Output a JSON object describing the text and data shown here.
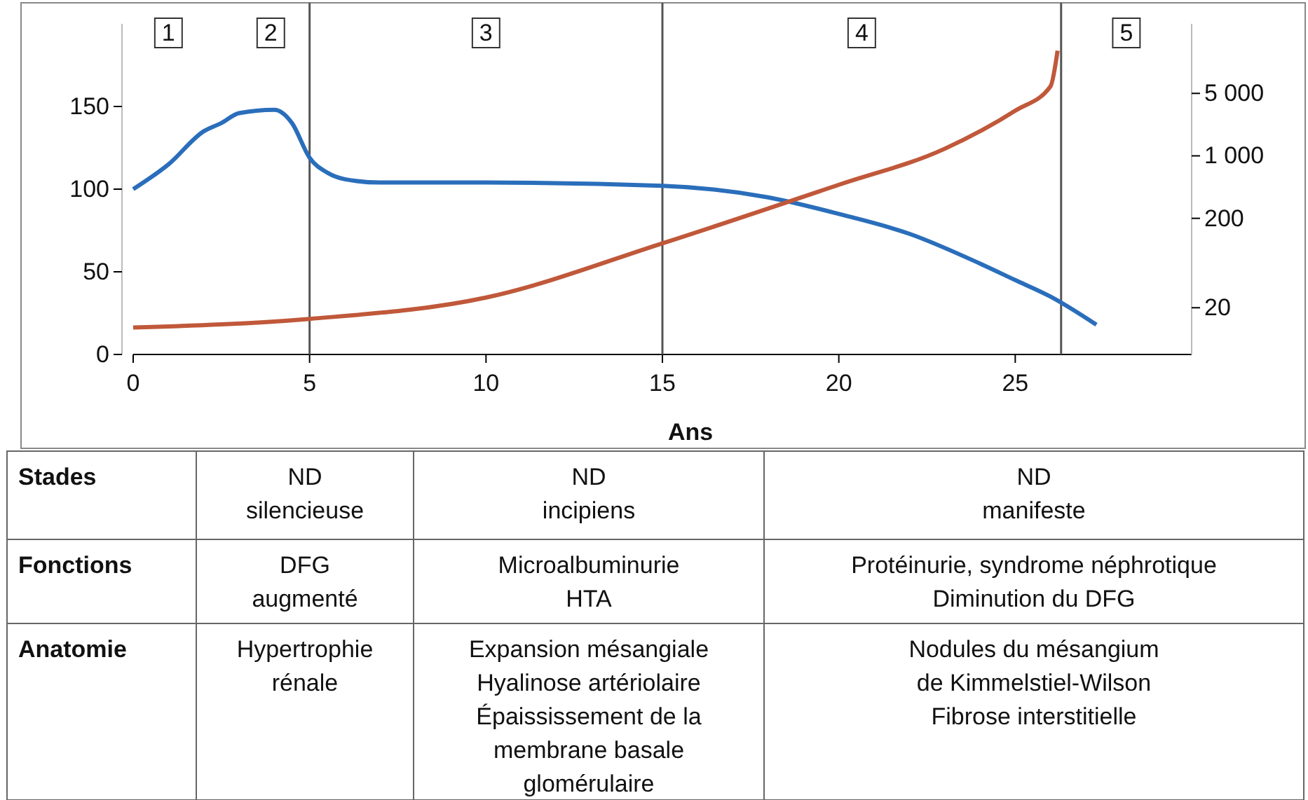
{
  "chart_data": {
    "type": "line",
    "xlabel": "Ans",
    "x": [
      0,
      1,
      2,
      2.5,
      3,
      4,
      4.5,
      5,
      5.5,
      6,
      7,
      10,
      15,
      18,
      20,
      22,
      24,
      25,
      26,
      27.3
    ],
    "xlim": [
      0,
      30
    ],
    "xticks": [
      0,
      5,
      10,
      15,
      20,
      25
    ],
    "ylim": [
      0,
      200
    ],
    "yticks": [
      0,
      50,
      100,
      150
    ],
    "y2lim": [
      6,
      30000
    ],
    "y2ticks": [
      {
        "value": 20,
        "label": "20"
      },
      {
        "value": 200,
        "label": "200"
      },
      {
        "value": 1000,
        "label": "1 000"
      },
      {
        "value": 5000,
        "label": "5 000"
      }
    ],
    "log": "y2",
    "series": [
      {
        "color": "#2a6ebb",
        "values": [
          100,
          115,
          135,
          140,
          146,
          148,
          140,
          119,
          110,
          106,
          104,
          104,
          102,
          95,
          85,
          73,
          55,
          45,
          35,
          18
        ]
      },
      {
        "color": "#c0583a",
        "axis": "y2",
        "x": [
          0,
          5,
          10,
          15,
          20,
          23,
          25,
          26,
          26.2
        ],
        "values": [
          12,
          15,
          26,
          105,
          475,
          1200,
          3200,
          6000,
          15000
        ]
      }
    ],
    "ref_lines": [
      {
        "axis": "x",
        "value": 5
      },
      {
        "axis": "x",
        "value": 15
      },
      {
        "axis": "x",
        "value": 26.3
      }
    ],
    "annotations": [
      "1",
      "2",
      "3",
      "4",
      "5",
      "Stades",
      "ND\nsilencieuse",
      "ND\nincipiens",
      "ND\nmanifeste",
      "Fonctions",
      "DFG\naugmenté",
      "Microalbuminurie\nHTA",
      "Protéinurie, syndrome néphrotique\nDiminution du DFG",
      "Anatomie",
      "Hypertrophie\nrénale",
      "Expansion mésangiale\nHyalinose artériolaire\nÉpaississement de la\nmembrane basale\nglomérulaire",
      "Nodules du mésangium\nde Kimmelstiel-Wilson\nFibrose interstitielle"
    ]
  }
}
